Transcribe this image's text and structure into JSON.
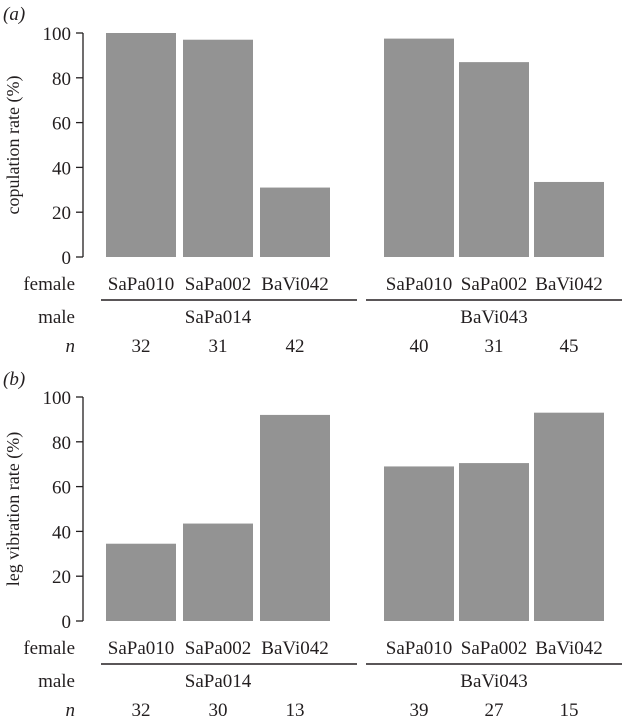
{
  "chart_data": [
    {
      "type": "bar",
      "panel_label": "(a)",
      "ylabel": "copulation rate (%)",
      "ylim": [
        0,
        100
      ],
      "yticks": [
        "0",
        "20",
        "40",
        "60",
        "80",
        "100"
      ],
      "female_row_label": "female",
      "male_row_label": "male",
      "n_row_label": "n",
      "categories": [
        "SaPa010",
        "SaPa002",
        "BaVi042",
        "SaPa010",
        "SaPa002",
        "BaVi042"
      ],
      "values": [
        100,
        97,
        31,
        97.5,
        87,
        33.5
      ],
      "male_groups": [
        {
          "name": "SaPa014",
          "count": 3
        },
        {
          "name": "BaVi043",
          "count": 3
        }
      ],
      "n": [
        "32",
        "31",
        "42",
        "40",
        "31",
        "45"
      ],
      "bar_color": "#939393"
    },
    {
      "type": "bar",
      "panel_label": "(b)",
      "ylabel": "leg vibration rate (%)",
      "ylim": [
        0,
        100
      ],
      "yticks": [
        "0",
        "20",
        "40",
        "60",
        "80",
        "100"
      ],
      "female_row_label": "female",
      "male_row_label": "male",
      "n_row_label": "n",
      "categories": [
        "SaPa010",
        "SaPa002",
        "BaVi042",
        "SaPa010",
        "SaPa002",
        "BaVi042"
      ],
      "values": [
        34.5,
        43.5,
        92,
        69,
        70.5,
        93
      ],
      "male_groups": [
        {
          "name": "SaPa014",
          "count": 3
        },
        {
          "name": "BaVi043",
          "count": 3
        }
      ],
      "n": [
        "32",
        "30",
        "13",
        "39",
        "27",
        "15"
      ],
      "bar_color": "#939393"
    }
  ]
}
